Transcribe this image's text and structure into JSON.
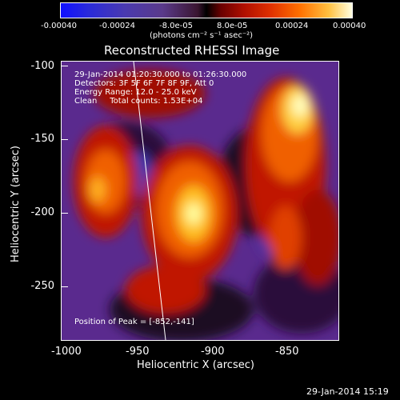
{
  "colorbar": {
    "ticks": [
      "-0.00040",
      "-0.00024",
      "-8.0e-05",
      "8.0e-05",
      "0.00024",
      "0.00040"
    ],
    "unit": "(photons cm⁻² s⁻¹ asec⁻²)",
    "range": [
      -0.0004,
      0.0004
    ]
  },
  "title": "Reconstructed RHESSI Image",
  "annotations": {
    "time": "29-Jan-2014 01:20:30.000 to 01:26:30.000",
    "detectors": "Detectors: 3F 5F 6F 7F 8F 9F, Att 0",
    "energy": "Energy Range: 12.0 - 25.0 keV",
    "clean": "Clean     Total counts: 1.53E+04",
    "peak": "Position of Peak = [-852,-141]"
  },
  "axes": {
    "xlabel": "Heliocentric X (arcsec)",
    "ylabel": "Heliocentric Y (arcsec)",
    "xticks": [
      "-1000",
      "-950",
      "-900",
      "-850"
    ],
    "yticks": [
      "-100",
      "-150",
      "-200",
      "-250"
    ],
    "xlim": [
      -1005,
      -820
    ],
    "ylim": [
      -287,
      -95
    ]
  },
  "footer": {
    "timestamp": "29-Jan-2014 15:19"
  }
}
